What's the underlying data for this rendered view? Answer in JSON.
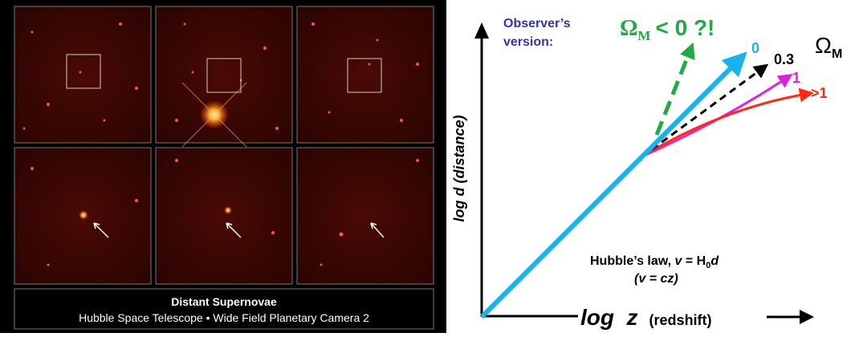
{
  "photo_panel": {
    "caption_title": "Distant Supernovae",
    "caption_subtitle": "Hubble Space Telescope • Wide Field Planetary Camera 2"
  },
  "diagram": {
    "observer_label": [
      "Observer’s",
      "version:"
    ],
    "negative_label": {
      "symbol": "Ω",
      "subscript": "M",
      "text": "< 0 ?!"
    },
    "curve_labels": [
      "0",
      "0.3",
      "1",
      ">1"
    ],
    "parameter_label": {
      "symbol": "Ω",
      "subscript": "M"
    },
    "y_axis_label": {
      "log": "log d",
      "unit": "(distance)"
    },
    "x_axis_label": {
      "log": "log  z",
      "unit": "(redshift)"
    },
    "hubble_law": {
      "line1": [
        "Hubble’s law, ",
        "v",
        " = H",
        "0",
        "d"
      ],
      "line2": [
        "(",
        "v",
        " = cz)"
      ]
    }
  }
}
